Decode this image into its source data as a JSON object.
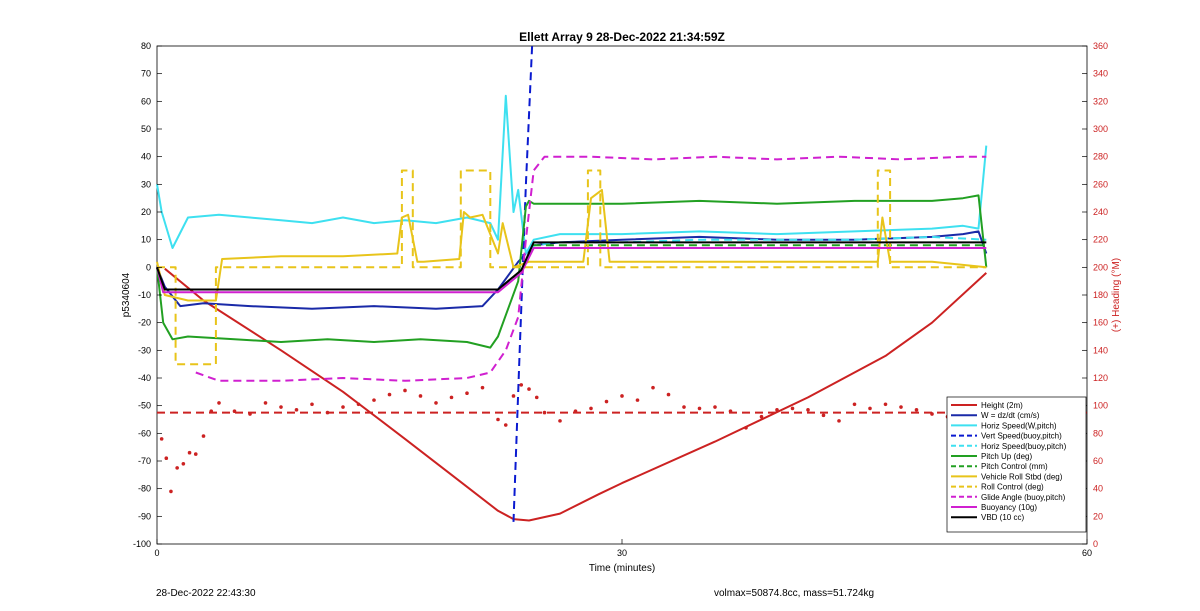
{
  "chart_data": {
    "type": "line",
    "title": "Ellett Array 9 28-Dec-2022 21:34:59Z",
    "xlabel": "Time (minutes)",
    "ylabel": "p5340604",
    "ylabel_right": "(+) Heading (°M)",
    "xlim": [
      0,
      60
    ],
    "ylim": [
      -100,
      80
    ],
    "ylim_right": [
      0,
      360
    ],
    "x_ticks": [
      0,
      30,
      60
    ],
    "y_ticks": [
      -100,
      -90,
      -80,
      -70,
      -60,
      -50,
      -40,
      -30,
      -20,
      -10,
      0,
      10,
      20,
      30,
      40,
      50,
      60,
      70,
      80
    ],
    "y_ticks_right": [
      0,
      20,
      40,
      60,
      80,
      100,
      120,
      140,
      160,
      180,
      200,
      220,
      240,
      260,
      280,
      300,
      320,
      340,
      360
    ],
    "grid": false,
    "legend_position": "bottom-right",
    "series": [
      {
        "name": "Height (2m)",
        "color": "#cc2222",
        "style": "solid",
        "width": 2,
        "x": [
          0.5,
          3,
          8,
          12,
          16,
          19,
          22,
          23,
          24,
          26,
          28.5,
          30,
          36,
          42,
          47,
          50,
          53.5
        ],
        "y": [
          -0.5,
          -12,
          -30,
          -45,
          -62,
          -75,
          -88,
          -91,
          -91.5,
          -89,
          -82,
          -78,
          -63,
          -47,
          -32,
          -20,
          -2
        ]
      },
      {
        "name": "W = dz/dt (cm/s)",
        "color": "#1a2aa8",
        "style": "solid",
        "width": 2,
        "x": [
          0,
          0.5,
          1.5,
          3,
          6,
          10,
          14,
          18,
          21,
          22,
          23.3,
          24.3,
          26,
          30,
          35,
          40,
          45,
          50,
          52,
          53,
          53.5
        ],
        "y": [
          0,
          -7,
          -14,
          -13,
          -14,
          -15,
          -14,
          -15,
          -14,
          -8,
          2,
          8,
          9,
          10,
          11,
          10,
          10,
          11,
          12,
          13,
          5
        ]
      },
      {
        "name": "Horiz Speed(W,pitch)",
        "color": "#3ee0f0",
        "style": "solid",
        "width": 2,
        "x": [
          0,
          0.3,
          1,
          2,
          4,
          6,
          8,
          10,
          12,
          14,
          16,
          18,
          20,
          21.5,
          22,
          22.5,
          23,
          23.3,
          23.8,
          24.3,
          26,
          30,
          35,
          40,
          45,
          50,
          52,
          53,
          53.5
        ],
        "y": [
          30,
          20,
          7,
          18,
          19,
          18,
          17,
          16,
          18,
          16,
          17,
          16,
          18,
          16,
          10,
          62,
          20,
          28,
          5,
          10,
          12,
          12,
          13,
          12,
          13,
          14,
          15,
          14,
          44
        ]
      },
      {
        "name": "Vert Speed(buoy,pitch)",
        "color": "#0a1ad0",
        "style": "dashed",
        "width": 2,
        "x": [
          23.0,
          23.4,
          23.8,
          24.2
        ],
        "y": [
          -92,
          -30,
          30,
          80
        ]
      },
      {
        "name": "Horiz Speed(buoy,pitch)",
        "color": "#3ee0f0",
        "style": "dashed",
        "width": 2,
        "x": [
          23.5,
          24.3,
          26,
          30,
          35,
          40,
          45,
          50,
          53.5
        ],
        "y": [
          -2,
          8,
          9,
          9,
          10,
          10,
          10,
          11,
          10
        ]
      },
      {
        "name": "Pitch Up (deg)",
        "color": "#22a022",
        "style": "solid",
        "width": 2,
        "x": [
          0,
          0.4,
          1,
          2,
          5,
          8,
          11,
          14,
          17,
          20,
          21.5,
          22,
          23.3,
          23.8,
          24,
          24.3,
          26,
          30,
          35,
          40,
          45,
          50,
          52,
          53,
          53.5
        ],
        "y": [
          0,
          -20,
          -26,
          -25,
          -26,
          -27,
          -26,
          -27,
          -26,
          -27,
          -29,
          -25,
          -5,
          22,
          24,
          23,
          23,
          23,
          24,
          23,
          24,
          24,
          25,
          26,
          0
        ]
      },
      {
        "name": "Pitch Control (mm)",
        "color": "#22a022",
        "style": "dashed",
        "width": 2,
        "x": [
          0,
          0.4,
          22,
          23.5,
          24.3,
          53.5
        ],
        "y": [
          0,
          -8,
          -8,
          -2,
          8,
          8
        ]
      },
      {
        "name": "Vehicle Roll Stbd (deg)",
        "color": "#e8c41a",
        "style": "solid",
        "width": 2,
        "x": [
          0,
          0.5,
          2,
          3.8,
          4.2,
          8,
          12,
          15.5,
          15.8,
          16.2,
          16.8,
          17.2,
          19.5,
          19.8,
          20.2,
          21,
          22,
          22.3,
          23,
          24,
          27.5,
          28,
          28.7,
          29.2,
          35,
          40,
          45,
          46.5,
          46.8,
          47.3,
          50,
          53.5
        ],
        "y": [
          2,
          -10,
          -12,
          -12,
          3,
          4,
          4,
          5,
          18,
          19,
          2,
          2,
          3,
          20,
          18,
          19,
          5,
          16,
          0,
          2,
          2,
          25,
          28,
          2,
          2,
          2,
          2,
          2,
          18,
          2,
          2,
          0
        ]
      },
      {
        "name": "Roll Control (deg)",
        "color": "#e8c41a",
        "style": "dashed",
        "width": 2,
        "x": [
          0,
          1.2,
          1.2,
          3.8,
          3.8,
          15.8,
          15.8,
          16.5,
          16.5,
          19.6,
          19.6,
          21.5,
          21.5,
          27.8,
          27.8,
          28.6,
          28.6,
          46.5,
          46.5,
          47.3,
          47.3,
          53.5
        ],
        "y": [
          0,
          0,
          -35,
          -35,
          0,
          0,
          35,
          35,
          0,
          0,
          35,
          35,
          0,
          0,
          35,
          35,
          0,
          0,
          35,
          35,
          0,
          0
        ]
      },
      {
        "name": "Glide Angle (buoy,pitch)",
        "color": "#d020d0",
        "style": "dashed",
        "width": 2,
        "x": [
          2.5,
          4,
          8,
          12,
          16,
          20,
          21.5,
          22.5,
          23.3,
          23.8,
          24.3,
          25,
          28,
          32,
          36,
          40,
          44,
          48,
          52,
          53.5
        ],
        "y": [
          -38,
          -41,
          -41,
          -40,
          -41,
          -40,
          -38,
          -30,
          -18,
          10,
          35,
          40,
          40,
          39,
          40,
          39,
          40,
          39,
          40,
          40
        ]
      },
      {
        "name": "Buoyancy (10g)",
        "color": "#d020d0",
        "style": "solid",
        "width": 2,
        "x": [
          0,
          0.4,
          22,
          23.5,
          24.3,
          53.5
        ],
        "y": [
          0,
          -9,
          -9,
          -2,
          7,
          7
        ]
      },
      {
        "name": "VBD (10 cc)",
        "color": "#000000",
        "style": "solid",
        "width": 2,
        "x": [
          0,
          0.5,
          22,
          23.5,
          24.3,
          53.5
        ],
        "y": [
          0,
          -8,
          -8,
          -1,
          9,
          9
        ]
      }
    ],
    "heading_series": {
      "name": "Heading",
      "color": "#cc2222",
      "axis": "right",
      "points_x": [
        0.3,
        0.6,
        0.9,
        1.3,
        1.7,
        2.1,
        2.5,
        3,
        3.5,
        4,
        5,
        6,
        7,
        8,
        9,
        10,
        11,
        12,
        13,
        14,
        15,
        16,
        17,
        18,
        19,
        20,
        21,
        22,
        22.5,
        23,
        23.5,
        24,
        24.5,
        25,
        26,
        27,
        28,
        29,
        30,
        31,
        32,
        33,
        34,
        35,
        36,
        37,
        38,
        39,
        40,
        41,
        42,
        43,
        44,
        45,
        46,
        47,
        48,
        49,
        50,
        51,
        52,
        53
      ],
      "points_y": [
        76,
        62,
        38,
        55,
        58,
        66,
        65,
        78,
        96,
        102,
        96,
        94,
        102,
        99,
        97,
        101,
        95,
        99,
        101,
        104,
        108,
        111,
        107,
        102,
        106,
        109,
        113,
        90,
        86,
        107,
        115,
        112,
        106,
        95,
        89,
        96,
        98,
        103,
        107,
        104,
        113,
        108,
        99,
        98,
        99,
        96,
        84,
        92,
        97,
        98,
        97,
        93,
        89,
        101,
        98,
        101,
        99,
        97,
        94,
        92,
        88,
        90
      ],
      "reference_line": 95
    }
  },
  "footer": {
    "left": "28-Dec-2022 22:43:30",
    "right": "volmax=50874.8cc, mass=51.724kg"
  }
}
